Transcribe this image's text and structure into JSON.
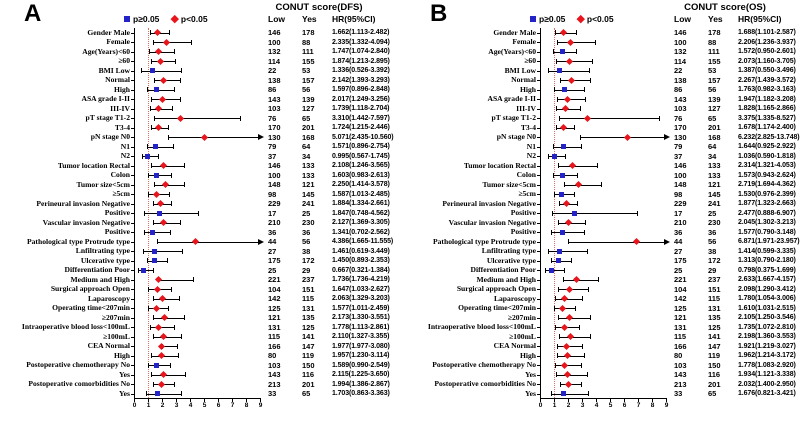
{
  "colors": {
    "nonsignificant_marker": "#2323c8",
    "significant_marker": "#e8151d",
    "reference_line": "#dd7160",
    "ci_line": "#000000"
  },
  "legend": {
    "nonsig_label": "p≥0.05",
    "sig_label": "p<0.05"
  },
  "chart_data": [
    {
      "type": "forest",
      "panel_letter": "A",
      "title": "CONUT score(DFS)",
      "columns": {
        "low": "Low",
        "yes": "Yes",
        "hr": "HR(95%CI)"
      },
      "axis": {
        "min": 0,
        "max": 9,
        "ticks": [
          0,
          1,
          2,
          3,
          4,
          5,
          6,
          7,
          8,
          9
        ],
        "reference": 1
      },
      "rows": [
        {
          "label": "Gender Male",
          "low": 146,
          "yes": 178,
          "hr": "1.662(1.113-2.482)",
          "est": 1.662,
          "lo": 1.113,
          "hi": 2.482,
          "sig": true
        },
        {
          "label": "Female",
          "low": 100,
          "yes": 88,
          "hr": "2.335(1.332-4.094)",
          "est": 2.335,
          "lo": 1.332,
          "hi": 4.094,
          "sig": true
        },
        {
          "label": "Age(Years)<60",
          "low": 132,
          "yes": 111,
          "hr": "1.747(1.074-2.840)",
          "est": 1.747,
          "lo": 1.074,
          "hi": 2.84,
          "sig": true
        },
        {
          "label": "≥60",
          "low": 114,
          "yes": 155,
          "hr": "1.874(1.213-2.895)",
          "est": 1.874,
          "lo": 1.213,
          "hi": 2.895,
          "sig": true
        },
        {
          "label": "BMI Low",
          "low": 22,
          "yes": 53,
          "hr": "1.336(0.526-3.392)",
          "est": 1.336,
          "lo": 0.526,
          "hi": 3.392,
          "sig": false
        },
        {
          "label": "Normal",
          "low": 138,
          "yes": 157,
          "hr": "2.142(1.393-3.293)",
          "est": 2.142,
          "lo": 1.393,
          "hi": 3.293,
          "sig": true
        },
        {
          "label": "High",
          "low": 86,
          "yes": 56,
          "hr": "1.597(0.896-2.848)",
          "est": 1.597,
          "lo": 0.896,
          "hi": 2.848,
          "sig": false
        },
        {
          "label": "ASA grade I-II",
          "low": 143,
          "yes": 139,
          "hr": "2.017(1.249-3.256)",
          "est": 2.017,
          "lo": 1.249,
          "hi": 3.256,
          "sig": true
        },
        {
          "label": "III-IV",
          "low": 103,
          "yes": 127,
          "hr": "1.739(1.118-2.704)",
          "est": 1.739,
          "lo": 1.118,
          "hi": 2.704,
          "sig": true
        },
        {
          "label": "pT stage T1-2",
          "low": 76,
          "yes": 65,
          "hr": "3.310(1.442-7.597)",
          "est": 3.31,
          "lo": 1.442,
          "hi": 7.597,
          "sig": true
        },
        {
          "label": "T3-4",
          "low": 170,
          "yes": 201,
          "hr": "1.724(1.215-2.446)",
          "est": 1.724,
          "lo": 1.215,
          "hi": 2.446,
          "sig": true
        },
        {
          "label": "pN stage N0",
          "low": 130,
          "yes": 168,
          "hr": "5.071(2.435-10.560)",
          "est": 5.071,
          "lo": 2.435,
          "hi": 10.56,
          "sig": true,
          "arrow": true
        },
        {
          "label": "N1",
          "low": 79,
          "yes": 64,
          "hr": "1.571(0.896-2.754)",
          "est": 1.571,
          "lo": 0.896,
          "hi": 2.754,
          "sig": false
        },
        {
          "label": "N2",
          "low": 37,
          "yes": 34,
          "hr": "0.995(0.567-1.745)",
          "est": 0.995,
          "lo": 0.567,
          "hi": 1.745,
          "sig": false
        },
        {
          "label": "Tumor location Rectal",
          "low": 146,
          "yes": 133,
          "hr": "2.108(1.246-3.565)",
          "est": 2.108,
          "lo": 1.246,
          "hi": 3.565,
          "sig": true
        },
        {
          "label": "Colon",
          "low": 100,
          "yes": 133,
          "hr": "1.603(0.983-2.613)",
          "est": 1.603,
          "lo": 0.983,
          "hi": 2.613,
          "sig": false
        },
        {
          "label": "Tumor size<5cm",
          "low": 148,
          "yes": 121,
          "hr": "2.250(1.414-3.578)",
          "est": 2.25,
          "lo": 1.414,
          "hi": 3.578,
          "sig": true
        },
        {
          "label": "≥5cm",
          "low": 98,
          "yes": 145,
          "hr": "1.587(1.013-2.485)",
          "est": 1.587,
          "lo": 1.013,
          "hi": 2.485,
          "sig": true
        },
        {
          "label": "Perineural invasion Negative",
          "low": 229,
          "yes": 241,
          "hr": "1.884(1.334-2.661)",
          "est": 1.884,
          "lo": 1.334,
          "hi": 2.661,
          "sig": true
        },
        {
          "label": "Positive",
          "low": 17,
          "yes": 25,
          "hr": "1.847(0.748-4.562)",
          "est": 1.847,
          "lo": 0.748,
          "hi": 4.562,
          "sig": false
        },
        {
          "label": "Vascular invasion Negative",
          "low": 210,
          "yes": 230,
          "hr": "2.127(1.369-3.305)",
          "est": 2.127,
          "lo": 1.369,
          "hi": 3.305,
          "sig": true
        },
        {
          "label": "Positive",
          "low": 36,
          "yes": 36,
          "hr": "1.341(0.702-2.562)",
          "est": 1.341,
          "lo": 0.702,
          "hi": 2.562,
          "sig": false
        },
        {
          "label": "Pathological type Protrude type",
          "low": 44,
          "yes": 56,
          "hr": "4.386(1.665-11.555)",
          "est": 4.386,
          "lo": 1.665,
          "hi": 11.555,
          "sig": true,
          "arrow": true
        },
        {
          "label": "Lnfiltrating type",
          "low": 27,
          "yes": 38,
          "hr": "1.461(0.619-3.449)",
          "est": 1.461,
          "lo": 0.619,
          "hi": 3.449,
          "sig": false
        },
        {
          "label": "Ulcerative type",
          "low": 175,
          "yes": 172,
          "hr": "1.450(0.893-2.353)",
          "est": 1.45,
          "lo": 0.893,
          "hi": 2.353,
          "sig": false
        },
        {
          "label": "Differentiation Poor",
          "low": 25,
          "yes": 29,
          "hr": "0.667(0.321-1.384)",
          "est": 0.667,
          "lo": 0.321,
          "hi": 1.384,
          "sig": false
        },
        {
          "label": "Medium and High",
          "low": 221,
          "yes": 237,
          "hr": "1.736(1.736-4.219)",
          "est": 1.736,
          "lo": 1.736,
          "hi": 4.219,
          "sig": true
        },
        {
          "label": "Surgical approach Open",
          "low": 104,
          "yes": 151,
          "hr": "1.647(1.033-2.627)",
          "est": 1.647,
          "lo": 1.033,
          "hi": 2.627,
          "sig": true
        },
        {
          "label": "Laparoscopy",
          "low": 142,
          "yes": 115,
          "hr": "2.063(1.329-3.203)",
          "est": 2.063,
          "lo": 1.329,
          "hi": 3.203,
          "sig": true
        },
        {
          "label": "Operating time<207min",
          "low": 125,
          "yes": 131,
          "hr": "1.577(1.011-2.459)",
          "est": 1.577,
          "lo": 1.011,
          "hi": 2.459,
          "sig": true
        },
        {
          "label": "≥207min",
          "low": 121,
          "yes": 135,
          "hr": "2.173(1.330-3.551)",
          "est": 2.173,
          "lo": 1.33,
          "hi": 3.551,
          "sig": true
        },
        {
          "label": "Intraoperative blood loss<100mL",
          "low": 131,
          "yes": 125,
          "hr": "1.778(1.113-2.861)",
          "est": 1.778,
          "lo": 1.113,
          "hi": 2.861,
          "sig": true
        },
        {
          "label": "≥100mL",
          "low": 115,
          "yes": 141,
          "hr": "2.110(1.327-3.355)",
          "est": 2.11,
          "lo": 1.327,
          "hi": 3.355,
          "sig": true
        },
        {
          "label": "CEA Normal",
          "low": 166,
          "yes": 147,
          "hr": "1.977(1.977-3.080)",
          "est": 1.977,
          "lo": 1.977,
          "hi": 3.08,
          "sig": true
        },
        {
          "label": "High",
          "low": 80,
          "yes": 119,
          "hr": "1.957(1.230-3.114)",
          "est": 1.957,
          "lo": 1.23,
          "hi": 3.114,
          "sig": true
        },
        {
          "label": "Postoperative chemotherapy No",
          "low": 103,
          "yes": 150,
          "hr": "1.589(0.990-2.549)",
          "est": 1.589,
          "lo": 0.99,
          "hi": 2.549,
          "sig": false
        },
        {
          "label": "Yes",
          "low": 143,
          "yes": 116,
          "hr": "2.115(1.225-3.650)",
          "est": 2.115,
          "lo": 1.225,
          "hi": 3.65,
          "sig": true
        },
        {
          "label": "Postoperative comorbidities No",
          "low": 213,
          "yes": 201,
          "hr": "1.994(1.386-2.867)",
          "est": 1.994,
          "lo": 1.386,
          "hi": 2.867,
          "sig": true
        },
        {
          "label": "Yes",
          "low": 33,
          "yes": 65,
          "hr": "1.703(0.863-3.363)",
          "est": 1.703,
          "lo": 0.863,
          "hi": 3.363,
          "sig": false
        }
      ]
    },
    {
      "type": "forest",
      "panel_letter": "B",
      "title": "CONUT score(OS)",
      "columns": {
        "low": "Low",
        "yes": "Yes",
        "hr": "HR(95%CI)"
      },
      "axis": {
        "min": 0,
        "max": 9,
        "ticks": [
          0,
          1,
          2,
          3,
          4,
          5,
          6,
          7,
          8,
          9
        ],
        "reference": 1
      },
      "rows": [
        {
          "label": "Gender Male",
          "low": 146,
          "yes": 178,
          "hr": "1.688(1.101-2.587)",
          "est": 1.688,
          "lo": 1.101,
          "hi": 2.587,
          "sig": true
        },
        {
          "label": "Female",
          "low": 100,
          "yes": 88,
          "hr": "2.206(1.236-3.937)",
          "est": 2.206,
          "lo": 1.236,
          "hi": 3.937,
          "sig": true
        },
        {
          "label": "Age(Years)<60",
          "low": 132,
          "yes": 111,
          "hr": "1.572(0.950-2.601)",
          "est": 1.572,
          "lo": 0.95,
          "hi": 2.601,
          "sig": false
        },
        {
          "label": "≥60",
          "low": 114,
          "yes": 155,
          "hr": "2.073(1.160-3.705)",
          "est": 2.073,
          "lo": 1.16,
          "hi": 3.705,
          "sig": true
        },
        {
          "label": "BMI Low",
          "low": 22,
          "yes": 53,
          "hr": "1.387(0.550-3.496)",
          "est": 1.387,
          "lo": 0.55,
          "hi": 3.496,
          "sig": false
        },
        {
          "label": "Normal",
          "low": 138,
          "yes": 157,
          "hr": "2.267(1.439-3.572)",
          "est": 2.267,
          "lo": 1.439,
          "hi": 3.572,
          "sig": true
        },
        {
          "label": "High",
          "low": 86,
          "yes": 56,
          "hr": "1.763(0.982-3.163)",
          "est": 1.763,
          "lo": 0.982,
          "hi": 3.163,
          "sig": false
        },
        {
          "label": "ASA grade I-II",
          "low": 143,
          "yes": 139,
          "hr": "1.947(1.182-3.208)",
          "est": 1.947,
          "lo": 1.182,
          "hi": 3.208,
          "sig": true
        },
        {
          "label": "III-IV",
          "low": 103,
          "yes": 127,
          "hr": "1.828(1.165-2.866)",
          "est": 1.828,
          "lo": 1.165,
          "hi": 2.866,
          "sig": true
        },
        {
          "label": "pT stage T1-2",
          "low": 76,
          "yes": 65,
          "hr": "3.375(1.335-8.527)",
          "est": 3.375,
          "lo": 1.335,
          "hi": 8.527,
          "sig": true
        },
        {
          "label": "T3-4",
          "low": 170,
          "yes": 201,
          "hr": "1.678(1.174-2.400)",
          "est": 1.678,
          "lo": 1.174,
          "hi": 2.4,
          "sig": true
        },
        {
          "label": "pN stage N0",
          "low": 130,
          "yes": 168,
          "hr": "6.232(2.825-13.748)",
          "est": 6.232,
          "lo": 2.825,
          "hi": 13.748,
          "sig": true,
          "arrow": true
        },
        {
          "label": "N1",
          "low": 79,
          "yes": 64,
          "hr": "1.644(0.925-2.922)",
          "est": 1.644,
          "lo": 0.925,
          "hi": 2.922,
          "sig": false
        },
        {
          "label": "N2",
          "low": 37,
          "yes": 34,
          "hr": "1.036(0.590-1.818)",
          "est": 1.036,
          "lo": 0.59,
          "hi": 1.818,
          "sig": false
        },
        {
          "label": "Tumor location Rectal",
          "low": 146,
          "yes": 133,
          "hr": "2.314(1.321-4.053)",
          "est": 2.314,
          "lo": 1.321,
          "hi": 4.053,
          "sig": true
        },
        {
          "label": "Colon",
          "low": 100,
          "yes": 133,
          "hr": "1.573(0.943-2.624)",
          "est": 1.573,
          "lo": 0.943,
          "hi": 2.624,
          "sig": false
        },
        {
          "label": "Tumor size<5cm",
          "low": 148,
          "yes": 121,
          "hr": "2.719(1.694-4.362)",
          "est": 2.719,
          "lo": 1.694,
          "hi": 4.362,
          "sig": true
        },
        {
          "label": "≥5cm",
          "low": 98,
          "yes": 145,
          "hr": "1.530(0.976-2.399)",
          "est": 1.53,
          "lo": 0.976,
          "hi": 2.399,
          "sig": false
        },
        {
          "label": "Perineural invasion Negative",
          "low": 229,
          "yes": 241,
          "hr": "1.877(1.323-2.663)",
          "est": 1.877,
          "lo": 1.323,
          "hi": 2.663,
          "sig": true
        },
        {
          "label": "Positive",
          "low": 17,
          "yes": 25,
          "hr": "2.477(0.888-6.907)",
          "est": 2.477,
          "lo": 0.888,
          "hi": 6.907,
          "sig": false
        },
        {
          "label": "Vascular invasion Negative",
          "low": 210,
          "yes": 230,
          "hr": "2.045(1.302-3.213)",
          "est": 2.045,
          "lo": 1.302,
          "hi": 3.213,
          "sig": true
        },
        {
          "label": "Positive",
          "low": 36,
          "yes": 36,
          "hr": "1.577(0.790-3.148)",
          "est": 1.577,
          "lo": 0.79,
          "hi": 3.148,
          "sig": false
        },
        {
          "label": "Pathological type Protrude type",
          "low": 44,
          "yes": 56,
          "hr": "6.871(1.971-23.957)",
          "est": 6.871,
          "lo": 1.971,
          "hi": 23.957,
          "sig": true,
          "arrow": true
        },
        {
          "label": "Lnfiltrating type",
          "low": 27,
          "yes": 38,
          "hr": "1.414(0.599-3.335)",
          "est": 1.414,
          "lo": 0.599,
          "hi": 3.335,
          "sig": false
        },
        {
          "label": "Ulcerative type",
          "low": 175,
          "yes": 172,
          "hr": "1.313(0.790-2.180)",
          "est": 1.313,
          "lo": 0.79,
          "hi": 2.18,
          "sig": false
        },
        {
          "label": "Differentiation Poor",
          "low": 25,
          "yes": 29,
          "hr": "0.798(0.375-1.699)",
          "est": 0.798,
          "lo": 0.375,
          "hi": 1.699,
          "sig": false
        },
        {
          "label": "Medium and High",
          "low": 221,
          "yes": 237,
          "hr": "2.633(1.667-4.157)",
          "est": 2.633,
          "lo": 1.667,
          "hi": 4.157,
          "sig": true
        },
        {
          "label": "Surgical approach Open",
          "low": 104,
          "yes": 151,
          "hr": "2.098(1.290-3.412)",
          "est": 2.098,
          "lo": 1.29,
          "hi": 3.412,
          "sig": true
        },
        {
          "label": "Laparoscopy",
          "low": 142,
          "yes": 115,
          "hr": "1.780(1.054-3.006)",
          "est": 1.78,
          "lo": 1.054,
          "hi": 3.006,
          "sig": true
        },
        {
          "label": "Operating time<207min",
          "low": 125,
          "yes": 131,
          "hr": "1.610(1.031-2.515)",
          "est": 1.61,
          "lo": 1.031,
          "hi": 2.515,
          "sig": true
        },
        {
          "label": "≥207min",
          "low": 121,
          "yes": 135,
          "hr": "2.105(1.250-3.546)",
          "est": 2.105,
          "lo": 1.25,
          "hi": 3.546,
          "sig": true
        },
        {
          "label": "Intraoperative blood loss<100mL",
          "low": 131,
          "yes": 125,
          "hr": "1.735(1.072-2.810)",
          "est": 1.735,
          "lo": 1.072,
          "hi": 2.81,
          "sig": true
        },
        {
          "label": "≥100mL",
          "low": 115,
          "yes": 141,
          "hr": "2.198(1.360-3.553)",
          "est": 2.198,
          "lo": 1.36,
          "hi": 3.553,
          "sig": true
        },
        {
          "label": "CEA Normal",
          "low": 166,
          "yes": 147,
          "hr": "1.921(1.219-3.027)",
          "est": 1.921,
          "lo": 1.219,
          "hi": 3.027,
          "sig": true
        },
        {
          "label": "High",
          "low": 80,
          "yes": 119,
          "hr": "1.962(1.214-3.172)",
          "est": 1.962,
          "lo": 1.214,
          "hi": 3.172,
          "sig": true
        },
        {
          "label": "Postoperative chemotherapy No",
          "low": 103,
          "yes": 150,
          "hr": "1.778(1.083-2.920)",
          "est": 1.778,
          "lo": 1.083,
          "hi": 2.92,
          "sig": true
        },
        {
          "label": "Yes",
          "low": 143,
          "yes": 116,
          "hr": "1.934(1.121-3.338)",
          "est": 1.934,
          "lo": 1.121,
          "hi": 3.338,
          "sig": true
        },
        {
          "label": "Postoperative comorbidities No",
          "low": 213,
          "yes": 201,
          "hr": "2.032(1.400-2.950)",
          "est": 2.032,
          "lo": 1.4,
          "hi": 2.95,
          "sig": true
        },
        {
          "label": "Yes",
          "low": 33,
          "yes": 65,
          "hr": "1.676(0.821-3.421)",
          "est": 1.676,
          "lo": 0.821,
          "hi": 3.421,
          "sig": false
        }
      ]
    }
  ]
}
